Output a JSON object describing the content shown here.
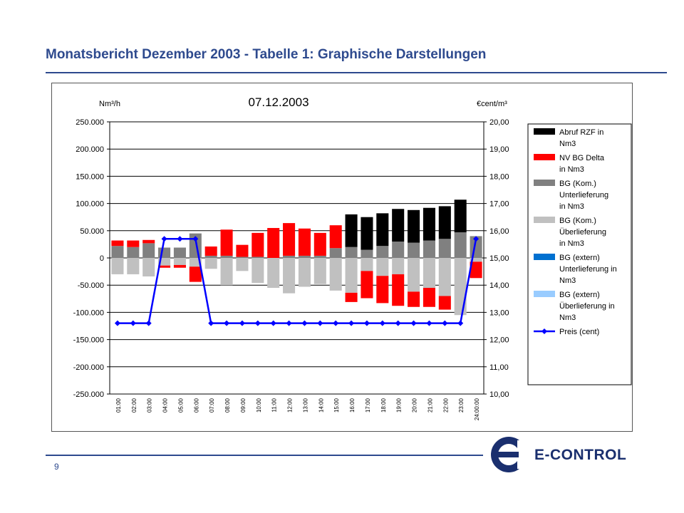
{
  "slide": {
    "title": "Monatsbericht Dezember 2003 - Tabelle 1: Graphische Darstellungen",
    "page_number": "9",
    "logo_text": "E-CONTROL"
  },
  "colors": {
    "title": "#2e4a8e",
    "abruf": "#000000",
    "nv_delta": "#ff0000",
    "bg_unter": "#808080",
    "bg_ueber": "#c0c0c0",
    "bg_ext_unter": "#0070d0",
    "bg_ext_ueber": "#99ccff",
    "preis": "#0000ff"
  },
  "chart_data": {
    "type": "bar",
    "title": "07.12.2003",
    "ylabel_left": "Nm³/h",
    "ylabel_right": "€cent/m³",
    "ylim_left": [
      -250000,
      250000
    ],
    "ylim_right": [
      10,
      20
    ],
    "left_ticks": [
      "250.000",
      "200.000",
      "150.000",
      "100.000",
      "50.000",
      "0",
      "-50.000",
      "-100.000",
      "-150.000",
      "-200.000",
      "-250.000"
    ],
    "right_ticks": [
      "20,00",
      "19,00",
      "18,00",
      "17,00",
      "16,00",
      "15,00",
      "14,00",
      "13,00",
      "12,00",
      "11,00",
      "10,00"
    ],
    "categories": [
      "01:00",
      "02:00",
      "03:00",
      "04:00",
      "05:00",
      "06:00",
      "07:00",
      "08:00",
      "09:00",
      "10:00",
      "11:00",
      "12:00",
      "13:00",
      "14:00",
      "15:00",
      "16:00",
      "17:00",
      "18:00",
      "19:00",
      "20:00",
      "21:00",
      "22:00",
      "23:00",
      "24:00:00"
    ],
    "grid": true,
    "legend_position": "right",
    "series": [
      {
        "name": "Abruf RZF in Nm3",
        "kind": "bar",
        "axis": "left",
        "values": [
          0,
          0,
          0,
          0,
          0,
          0,
          0,
          0,
          0,
          0,
          0,
          0,
          0,
          0,
          0,
          60000,
          60000,
          60000,
          60000,
          60000,
          60000,
          60000,
          60000,
          0
        ]
      },
      {
        "name": "NV BG Delta in Nm3",
        "kind": "bar",
        "axis": "left",
        "values": [
          10000,
          12000,
          6000,
          -4000,
          -5000,
          -28000,
          17000,
          48000,
          22000,
          44000,
          55000,
          60000,
          50000,
          42000,
          42000,
          -17000,
          -50000,
          -50000,
          -58000,
          -28000,
          -35000,
          -25000,
          0,
          -30000
        ]
      },
      {
        "name": "BG (Kom.) Unterlieferung in Nm3",
        "kind": "bar",
        "axis": "left",
        "values": [
          22000,
          20000,
          27000,
          19000,
          19000,
          45000,
          4000,
          4000,
          2000,
          2000,
          0,
          4000,
          4000,
          4000,
          18000,
          20000,
          15000,
          22000,
          30000,
          28000,
          32000,
          35000,
          47000,
          40000
        ]
      },
      {
        "name": "BG (Kom.) Überlieferung in Nm3",
        "kind": "bar",
        "axis": "left",
        "values": [
          -30000,
          -30000,
          -34000,
          -14000,
          -13000,
          -16000,
          -20000,
          -50000,
          -24000,
          -46000,
          -55000,
          -65000,
          -53000,
          -48000,
          -60000,
          -64000,
          -24000,
          -33000,
          -30000,
          -62000,
          -55000,
          -70000,
          -105000,
          -7000
        ]
      },
      {
        "name": "BG (extern) Unterlieferung in Nm3",
        "kind": "bar",
        "axis": "left",
        "values": [
          0,
          0,
          0,
          0,
          0,
          0,
          0,
          0,
          0,
          0,
          0,
          0,
          0,
          0,
          0,
          0,
          0,
          0,
          0,
          0,
          0,
          0,
          0,
          0
        ]
      },
      {
        "name": "BG (extern) Überlieferung in Nm3",
        "kind": "bar",
        "axis": "left",
        "values": [
          0,
          0,
          0,
          0,
          0,
          0,
          0,
          0,
          0,
          0,
          0,
          0,
          0,
          0,
          0,
          0,
          0,
          0,
          0,
          0,
          0,
          0,
          0,
          0
        ]
      },
      {
        "name": "Preis (cent)",
        "kind": "line",
        "axis": "right",
        "values": [
          12.6,
          12.6,
          12.6,
          15.7,
          15.7,
          15.7,
          12.6,
          12.6,
          12.6,
          12.6,
          12.6,
          12.6,
          12.6,
          12.6,
          12.6,
          12.6,
          12.6,
          12.6,
          12.6,
          12.6,
          12.6,
          12.6,
          12.6,
          15.7
        ]
      }
    ],
    "legend": [
      {
        "lines": [
          "Abruf RZF in",
          "Nm3"
        ],
        "color_key": "abruf",
        "kind": "box"
      },
      {
        "lines": [
          "NV BG Delta",
          "in Nm3"
        ],
        "color_key": "nv_delta",
        "kind": "box"
      },
      {
        "lines": [
          "BG (Kom.)",
          "Unterlieferung",
          "in Nm3"
        ],
        "color_key": "bg_unter",
        "kind": "box"
      },
      {
        "lines": [
          "BG (Kom.)",
          "Überlieferung",
          "in Nm3"
        ],
        "color_key": "bg_ueber",
        "kind": "box"
      },
      {
        "lines": [
          "BG (extern)",
          "Unterlieferung in",
          "Nm3"
        ],
        "color_key": "bg_ext_unter",
        "kind": "box"
      },
      {
        "lines": [
          "BG (extern)",
          "Überlieferung in",
          "Nm3"
        ],
        "color_key": "bg_ext_ueber",
        "kind": "box"
      },
      {
        "lines": [
          "Preis (cent)"
        ],
        "color_key": "preis",
        "kind": "line"
      }
    ]
  }
}
